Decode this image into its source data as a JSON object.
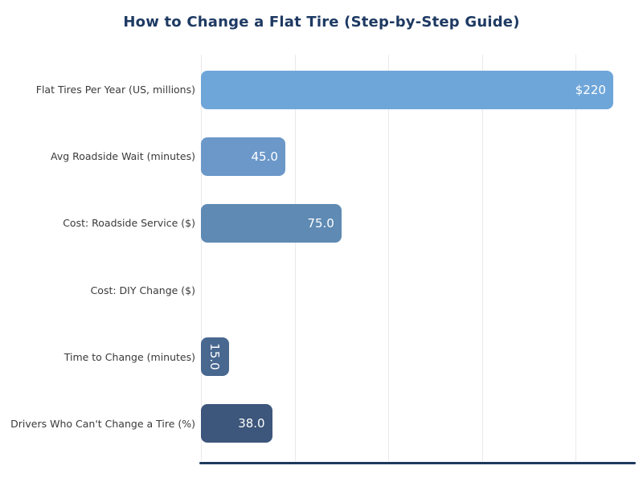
{
  "chart_data": {
    "type": "bar",
    "orientation": "horizontal",
    "title": "How to Change a Flat Tire (Step-by-Step Guide)",
    "categories": [
      "Flat Tires Per Year (US, millions)",
      "Avg Roadside Wait (minutes)",
      "Cost: Roadside Service ($)",
      "Cost: DIY Change ($)",
      "Time to Change (minutes)",
      "Drivers Who Can't Change a Tire (%)"
    ],
    "values": [
      220,
      45,
      75,
      0,
      15,
      38
    ],
    "value_labels": [
      "$220",
      "45.0",
      "75.0",
      "",
      "15.0",
      "38.0"
    ],
    "bar_colors": [
      "#6fa6d9",
      "#6b97c9",
      "#5e8ab3",
      "#547a9f",
      "#486890",
      "#3d567b"
    ],
    "xlim": [
      0,
      231.6
    ],
    "xticks": [
      0,
      50,
      100,
      150,
      200
    ],
    "xtick_labels_visible": false,
    "grid": "vertical",
    "gridline_color": "#e9e9e9",
    "axis_line_color": "#1e3a5f",
    "title_color": "#1e3a63",
    "label_color": "#3a3a3a",
    "value_label_color": "#ffffff",
    "background": "#ffffff",
    "legend": "none"
  }
}
